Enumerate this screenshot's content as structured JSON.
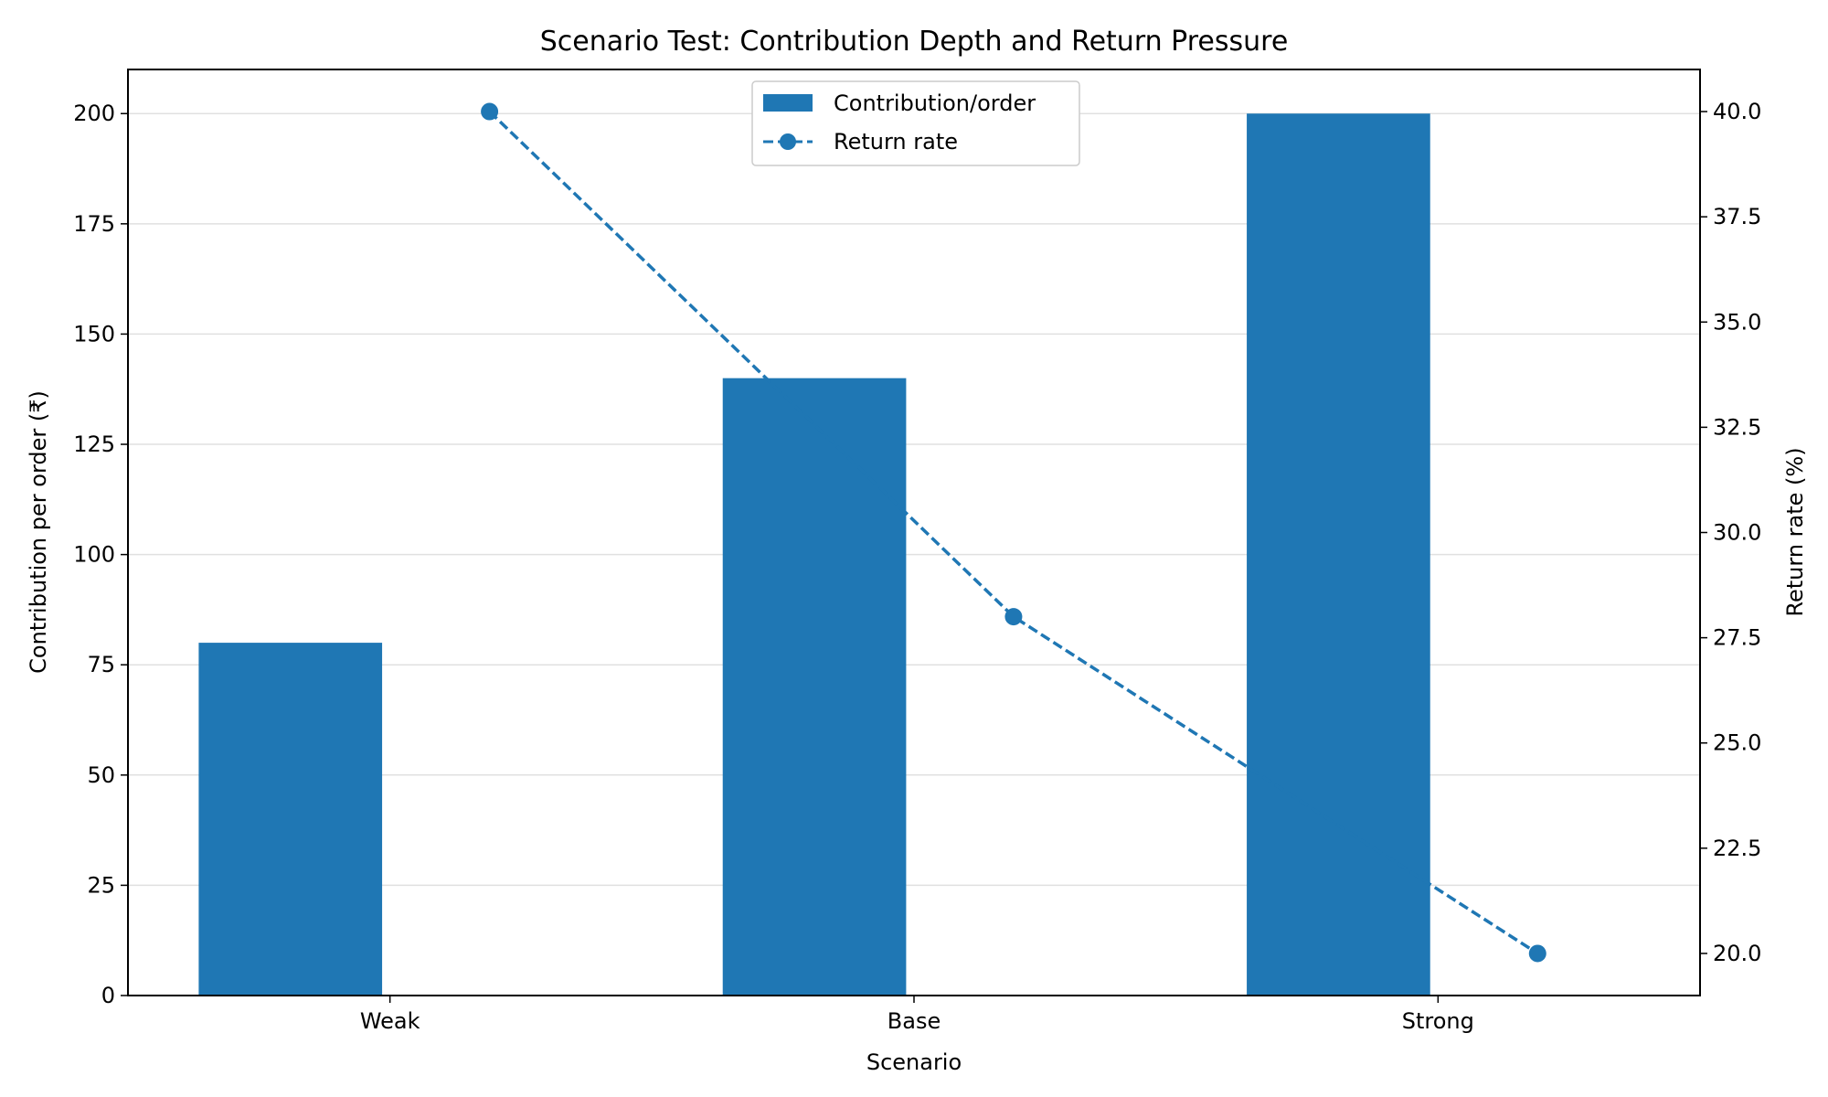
{
  "chart_data": {
    "type": "bar",
    "title": "Scenario Test: Contribution Depth and Return Pressure",
    "xlabel": "Scenario",
    "ylabel": "Contribution per order (₹)",
    "y2label": "Return rate (%)",
    "categories": [
      "Weak",
      "Base",
      "Strong"
    ],
    "ylim": [
      0,
      210
    ],
    "y2lim": [
      19,
      41
    ],
    "yticks": [
      0,
      25,
      50,
      75,
      100,
      125,
      150,
      175,
      200
    ],
    "y2ticks": [
      20.0,
      22.5,
      25.0,
      27.5,
      30.0,
      32.5,
      35.0,
      37.5,
      40.0
    ],
    "y2tick_labels": [
      "20.0",
      "22.5",
      "25.0",
      "27.5",
      "30.0",
      "32.5",
      "35.0",
      "37.5",
      "40.0"
    ],
    "grid": true,
    "legend_position": "top-center",
    "series": [
      {
        "name": "Contribution/order",
        "type": "bar",
        "axis": "left",
        "values": [
          80,
          140,
          200
        ],
        "color": "#1f77b4"
      },
      {
        "name": "Return rate",
        "type": "line",
        "axis": "right",
        "style": "dashed",
        "marker": "circle",
        "values": [
          40,
          28,
          20
        ],
        "color": "#1f77b4"
      }
    ]
  }
}
